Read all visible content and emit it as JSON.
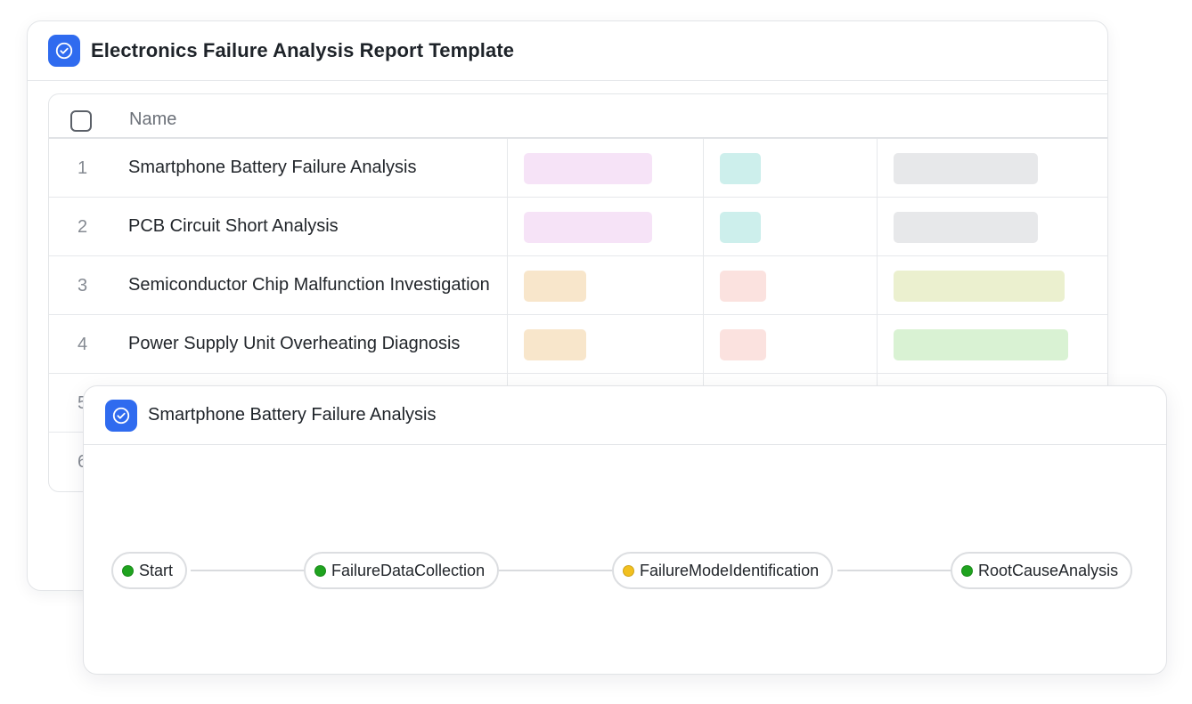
{
  "report": {
    "title": "Electronics Failure Analysis Report Template",
    "table": {
      "column_name_header": "Name",
      "rows": [
        {
          "num": "1",
          "name": "Smartphone Battery Failure Analysis"
        },
        {
          "num": "2",
          "name": "PCB Circuit Short Analysis"
        },
        {
          "num": "3",
          "name": "Semiconductor Chip Malfunction Investigation"
        },
        {
          "num": "4",
          "name": "Power Supply Unit Overheating Diagnosis"
        },
        {
          "num": "5",
          "name": ""
        },
        {
          "num": "6",
          "name": ""
        }
      ],
      "tag_colors": [
        [
          "#f6e3f7",
          "#cdefec",
          "#e7e8ea"
        ],
        [
          "#f6e3f7",
          "#cdefec",
          "#e7e8ea"
        ],
        [
          "#f8e6cb",
          "#fbe2df",
          "#ebf0cf"
        ],
        [
          "#f8e6cb",
          "#fbe2df",
          "#d9f2d3"
        ]
      ]
    }
  },
  "workflow": {
    "title": "Smartphone Battery Failure Analysis",
    "nodes": [
      {
        "label": "Start",
        "status_color": "#1fa31f"
      },
      {
        "label": "FailureDataCollection",
        "status_color": "#1fa31f"
      },
      {
        "label": "FailureModeIdentification",
        "status_color": "#f2c01f"
      },
      {
        "label": "RootCauseAnalysis",
        "status_color": "#1fa31f"
      }
    ]
  },
  "colors": {
    "accent": "#2f6bef"
  }
}
